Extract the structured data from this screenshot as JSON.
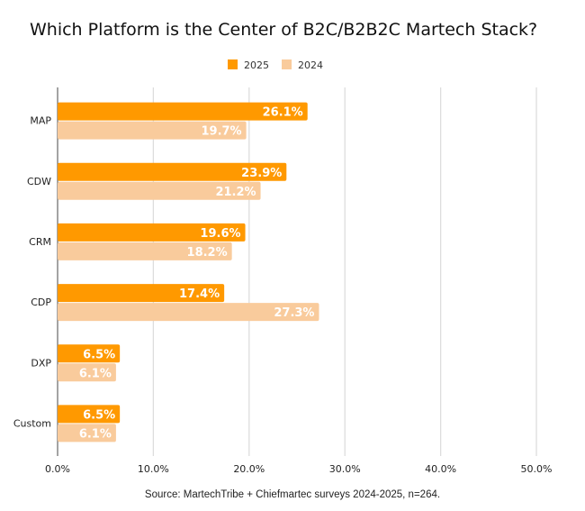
{
  "chart_data": {
    "type": "bar",
    "orientation": "horizontal",
    "title": "Which Platform is the Center of B2C/B2B2C Martech Stack?",
    "categories": [
      "MAP",
      "CDW",
      "CRM",
      "CDP",
      "DXP",
      "Custom"
    ],
    "series": [
      {
        "name": "2025",
        "color": "#FF9900",
        "values": [
          26.1,
          23.9,
          19.6,
          17.4,
          6.5,
          6.5
        ]
      },
      {
        "name": "2024",
        "color": "#F9CB9C",
        "values": [
          19.7,
          21.2,
          18.2,
          27.3,
          6.1,
          6.1
        ]
      }
    ],
    "xlim": [
      0,
      50
    ],
    "xticks": [
      "0.0%",
      "10.0%",
      "20.0%",
      "30.0%",
      "40.0%",
      "50.0%"
    ],
    "value_format": "percent-1dp",
    "grid": true,
    "legend": "top-center",
    "source": "Source: MartechTribe + Chiefmartec surveys 2024-2025, n=264."
  }
}
